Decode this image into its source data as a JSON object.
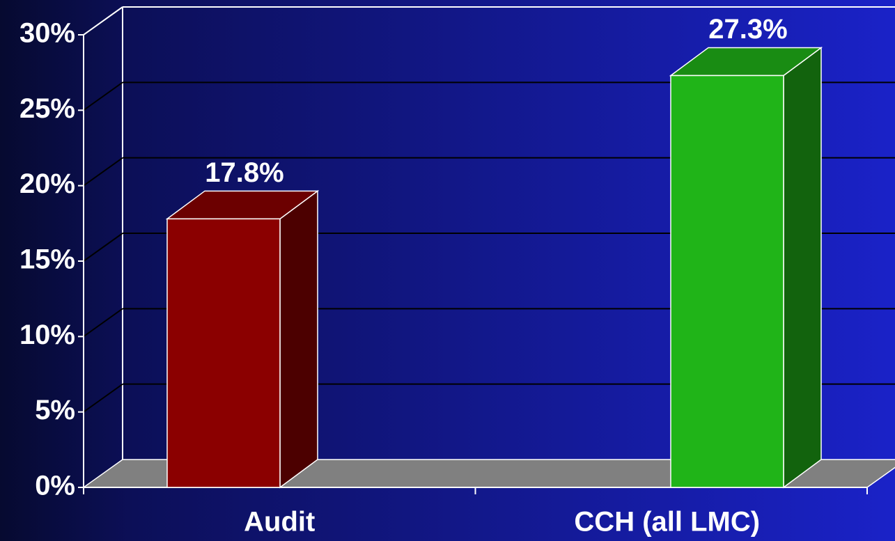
{
  "chart_data": {
    "type": "bar3d",
    "categories": [
      "Audit",
      "CCH (all LMC)"
    ],
    "values": [
      17.8,
      27.3
    ],
    "value_labels": [
      "17.8%",
      "27.3%"
    ],
    "colors": [
      "#8b0000",
      "#20b418"
    ],
    "ylim": [
      0,
      30
    ],
    "yticks": [
      {
        "value": 0,
        "label": "0%"
      },
      {
        "value": 5,
        "label": "5%"
      },
      {
        "value": 10,
        "label": "10%"
      },
      {
        "value": 15,
        "label": "15%"
      },
      {
        "value": 20,
        "label": "20%"
      },
      {
        "value": 25,
        "label": "25%"
      },
      {
        "value": 30,
        "label": "30%"
      }
    ],
    "grid": true
  }
}
